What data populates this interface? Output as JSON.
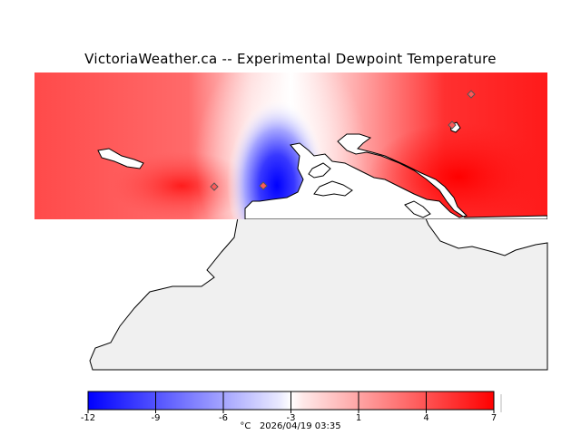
{
  "title": "VictoriaWeather.ca -- Experimental Dewpoint Temperature",
  "footer": {
    "unit": "°C",
    "timestamp": "2026/04/19 03:35"
  },
  "legend": {
    "ticks": [
      "-12",
      "-9",
      "-6",
      "-3",
      "1",
      "4",
      "7"
    ],
    "min": -12,
    "max": 7,
    "colors": {
      "cold": "#0000ff",
      "neutral": "#ffffff",
      "warm": "#ff0000"
    }
  },
  "colors": {
    "land": "#f0f0f0",
    "coastline": "#000000"
  },
  "stations": [
    {
      "id": "station-west",
      "dewpoint": 5
    },
    {
      "id": "station-central",
      "dewpoint": -11
    },
    {
      "id": "station-northeast-1",
      "dewpoint": 5
    },
    {
      "id": "station-northeast-2",
      "dewpoint": 6
    }
  ]
}
